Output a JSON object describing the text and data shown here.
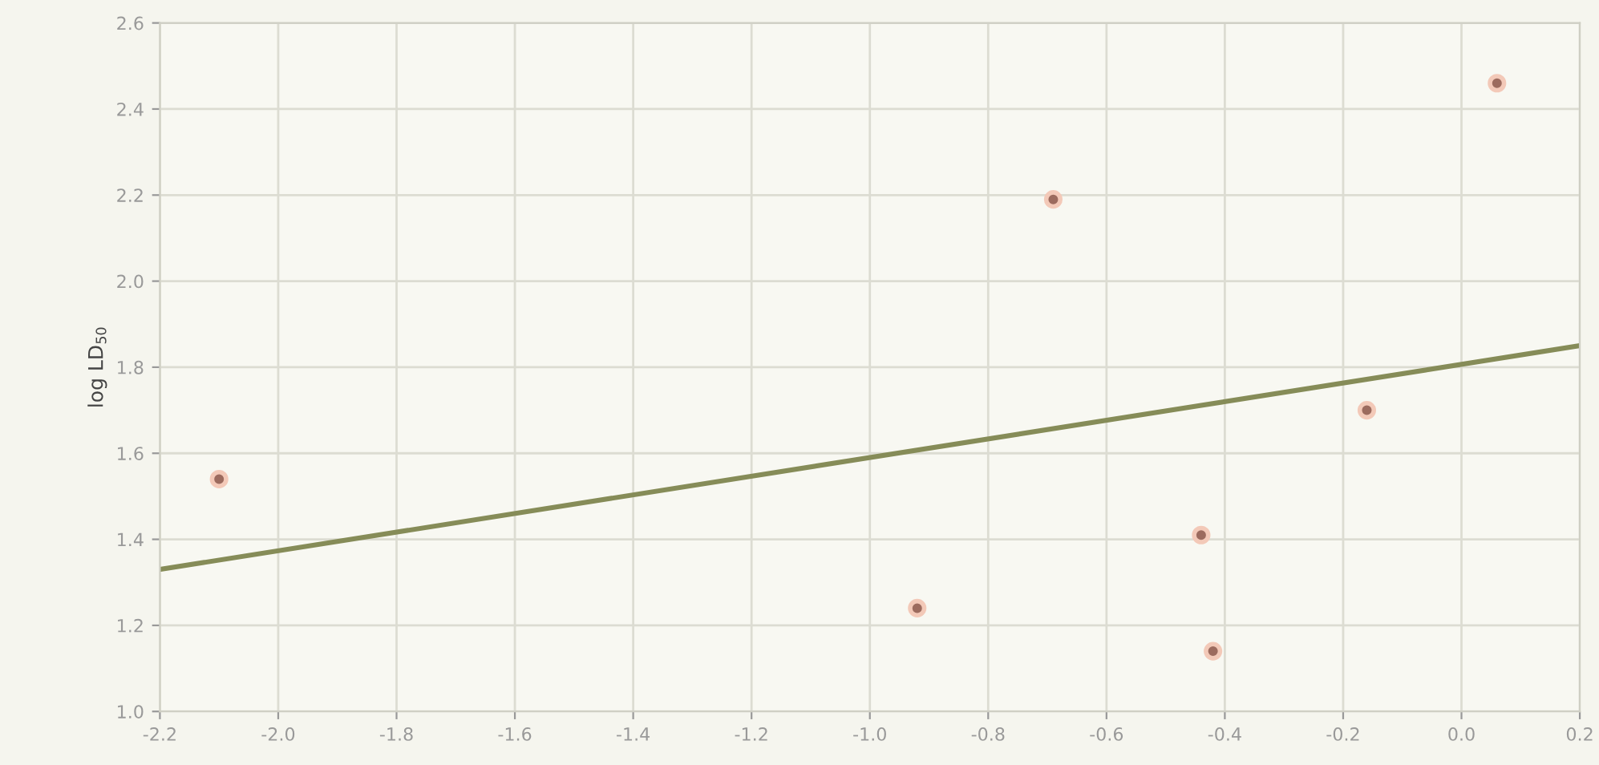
{
  "chart_data": {
    "type": "scatter",
    "ylabel": "log LD$_{50}$",
    "xlim": [
      -2.2,
      0.2
    ],
    "ylim": [
      1.0,
      2.6
    ],
    "xticks": [
      {
        "value": -2.2,
        "label": "-2.2"
      },
      {
        "value": -2.0,
        "label": "-2.0"
      },
      {
        "value": -1.8,
        "label": "-1.8"
      },
      {
        "value": -1.6,
        "label": "-1.6"
      },
      {
        "value": -1.4,
        "label": "-1.4"
      },
      {
        "value": -1.2,
        "label": "-1.2"
      },
      {
        "value": -1.0,
        "label": "-1.0"
      },
      {
        "value": -0.8,
        "label": "-0.8"
      },
      {
        "value": -0.6,
        "label": "-0.6"
      },
      {
        "value": -0.4,
        "label": "-0.4"
      },
      {
        "value": -0.2,
        "label": "-0.2"
      },
      {
        "value": 0.0,
        "label": "0.0"
      },
      {
        "value": 0.2,
        "label": "0.2"
      }
    ],
    "yticks": [
      {
        "value": 1.0,
        "label": "1.0"
      },
      {
        "value": 1.2,
        "label": "1.2"
      },
      {
        "value": 1.4,
        "label": "1.4"
      },
      {
        "value": 1.6,
        "label": "1.6"
      },
      {
        "value": 1.8,
        "label": "1.8"
      },
      {
        "value": 2.0,
        "label": "2.0"
      },
      {
        "value": 2.2,
        "label": "2.2"
      },
      {
        "value": 2.4,
        "label": "2.4"
      },
      {
        "value": 2.6,
        "label": "2.6"
      }
    ],
    "grid": true,
    "series": [
      {
        "marker": "circle",
        "color": "#9c6b5e",
        "x": [
          -2.1,
          -0.92,
          -0.69,
          -0.44,
          -0.42,
          -0.16,
          0.06
        ],
        "values": [
          1.54,
          1.24,
          2.19,
          1.41,
          1.14,
          1.7,
          2.46
        ]
      },
      {
        "type": "line",
        "marker": "none",
        "color": "#868c58",
        "x": [
          -2.2,
          0.2
        ],
        "values": [
          1.33,
          1.85
        ]
      }
    ]
  }
}
